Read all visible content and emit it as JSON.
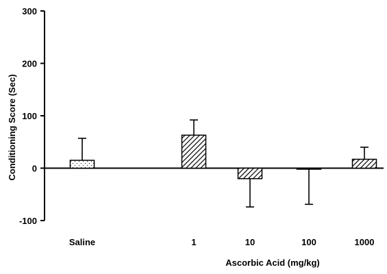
{
  "chart_data": {
    "type": "bar",
    "title": "",
    "ylabel": "Conditioning Score (Sec)",
    "xlabel": "Ascorbic Acid (mg/kg)",
    "ylim": [
      -100,
      300
    ],
    "yticks": [
      -100,
      0,
      100,
      200,
      300
    ],
    "grid": false,
    "categories": [
      "Saline",
      "1",
      "10",
      "100",
      "1000"
    ],
    "values": [
      15,
      63,
      -20,
      -2,
      17
    ],
    "error_bars": [
      {
        "category": "Saline",
        "direction": "up",
        "end": 57
      },
      {
        "category": "1",
        "direction": "up",
        "end": 92
      },
      {
        "category": "10",
        "direction": "down",
        "end": -74
      },
      {
        "category": "100",
        "direction": "down",
        "end": -69
      },
      {
        "category": "1000",
        "direction": "up",
        "end": 40
      }
    ],
    "bar_fills": [
      "dotted",
      "hatched",
      "hatched",
      "hatched",
      "hatched"
    ]
  }
}
